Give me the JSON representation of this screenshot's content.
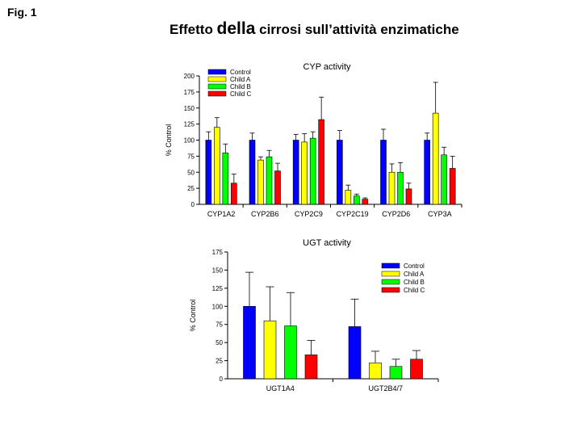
{
  "figure": {
    "label": "Fig. 1",
    "title_before": "Effetto ",
    "title_emphasis": "della",
    "title_after": " cirrosi sull’attività enzimatiche"
  },
  "chart_data": [
    {
      "type": "bar",
      "title": "CYP activity",
      "ylabel": "% Control",
      "xlabel": "",
      "ylim": [
        0,
        200
      ],
      "yticks": [
        0,
        25,
        50,
        75,
        100,
        125,
        150,
        175,
        200
      ],
      "categories": [
        "CYP1A2",
        "CYP2B6",
        "CYP2C9",
        "CYP2C19",
        "CYP2D6",
        "CYP3A"
      ],
      "legend_position": "top-left",
      "series": [
        {
          "name": "Control",
          "color": "#0000ff",
          "values": [
            100,
            100,
            100,
            100,
            100,
            100
          ],
          "errors": [
            13,
            11,
            9,
            15,
            17,
            11
          ]
        },
        {
          "name": "Child A",
          "color": "#ffff00",
          "values": [
            120,
            69,
            97,
            22,
            50,
            142
          ],
          "errors": [
            15,
            5,
            13,
            8,
            13,
            48
          ]
        },
        {
          "name": "Child B",
          "color": "#00ff00",
          "values": [
            80,
            74,
            103,
            13,
            50,
            77
          ],
          "errors": [
            14,
            10,
            10,
            3,
            15,
            12
          ]
        },
        {
          "name": "Child C",
          "color": "#ff0000",
          "values": [
            33,
            52,
            132,
            8,
            24,
            56
          ],
          "errors": [
            14,
            12,
            35,
            2,
            9,
            19
          ]
        }
      ]
    },
    {
      "type": "bar",
      "title": "UGT activity",
      "ylabel": "% Control",
      "xlabel": "",
      "ylim": [
        0,
        175
      ],
      "yticks": [
        0,
        25,
        50,
        75,
        100,
        125,
        150,
        175
      ],
      "categories": [
        "UGT1A4",
        "UGT2B4/7"
      ],
      "legend_position": "top-right",
      "series": [
        {
          "name": "Control",
          "color": "#0000ff",
          "values": [
            100,
            72
          ],
          "errors": [
            47,
            38
          ]
        },
        {
          "name": "Child A",
          "color": "#ffff00",
          "values": [
            80,
            22
          ],
          "errors": [
            47,
            16
          ]
        },
        {
          "name": "Child B",
          "color": "#00ff00",
          "values": [
            73,
            17
          ],
          "errors": [
            46,
            10
          ]
        },
        {
          "name": "Child C",
          "color": "#ff0000",
          "values": [
            33,
            27
          ],
          "errors": [
            20,
            12
          ]
        }
      ]
    }
  ]
}
